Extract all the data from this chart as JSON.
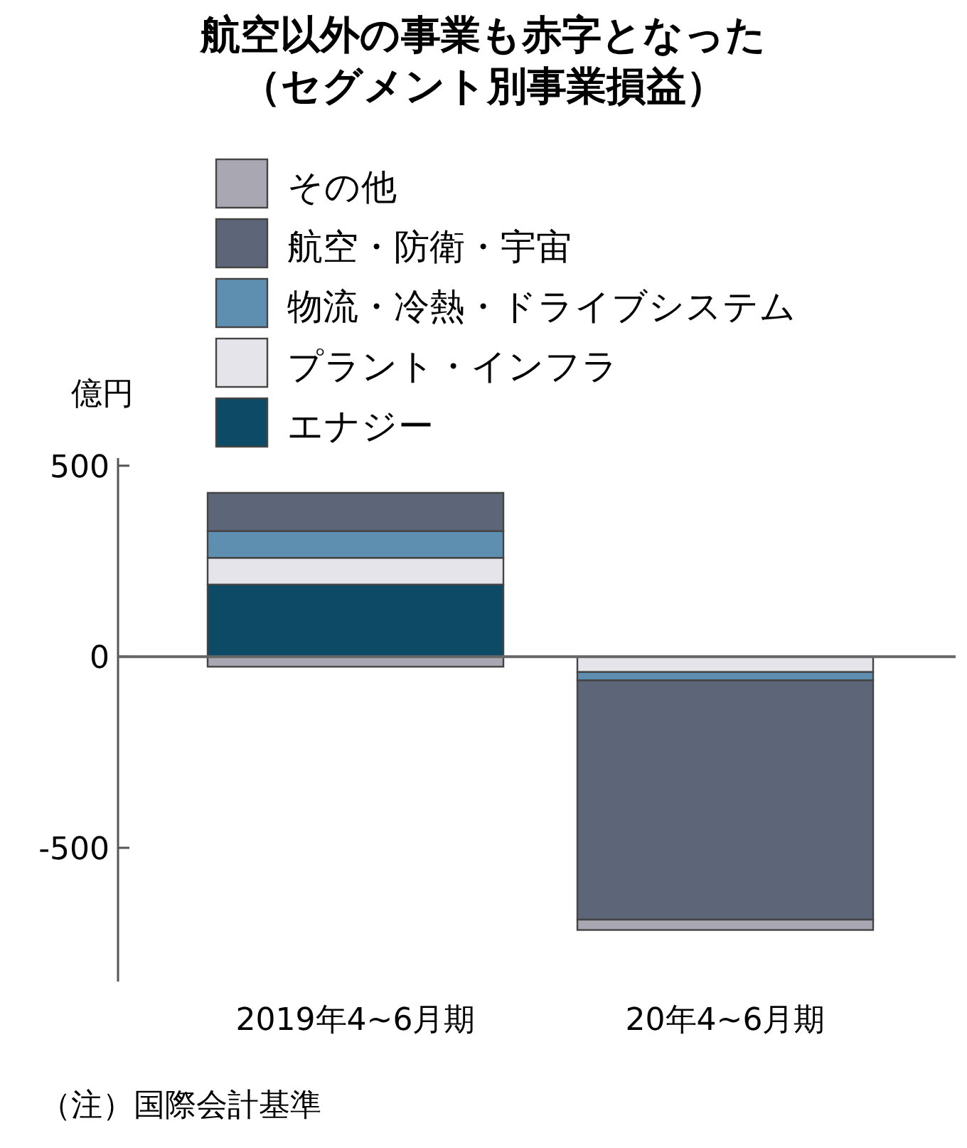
{
  "chart_data": {
    "type": "bar",
    "title": "航空以外の事業も赤字となった",
    "subtitle": "（セグメント別事業損益）",
    "ylabel": "億円",
    "categories": [
      "2019年4~6月期",
      "20年4~6月期"
    ],
    "stacked": true,
    "series": [
      {
        "name": "エナジー",
        "color": "#0d4a66",
        "values": [
          189,
          0
        ]
      },
      {
        "name": "プラント・インフラ",
        "color": "#e4e4ea",
        "values": [
          70,
          -40
        ]
      },
      {
        "name": "物流・冷熱・ドライブシステム",
        "color": "#5f8fb0",
        "values": [
          70,
          -22
        ]
      },
      {
        "name": "航空・防衛・宇宙",
        "color": "#5d6678",
        "values": [
          100,
          -626
        ]
      },
      {
        "name": "その他",
        "color": "#a9a8b2",
        "values": [
          -26,
          -27
        ]
      }
    ],
    "ylim": [
      -850,
      520
    ],
    "yticks": [
      500,
      0,
      -500
    ],
    "ref_lines": [
      {
        "axis": "y",
        "value": 0,
        "color": "#666666"
      }
    ],
    "legend": "top left",
    "annotations": [
      "（注）国際会計基準"
    ]
  }
}
